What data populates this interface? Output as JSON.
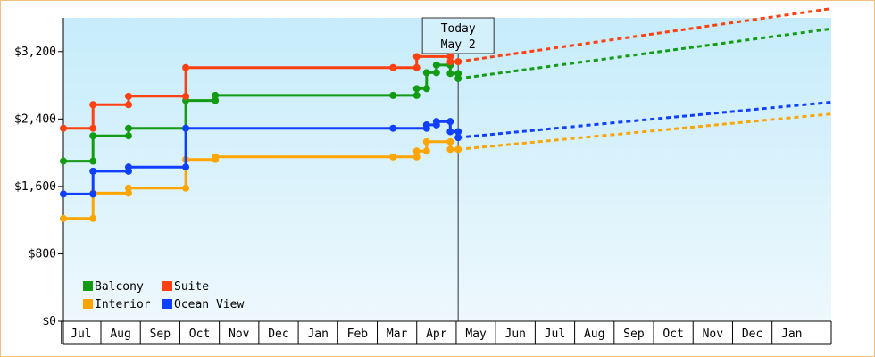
{
  "chart_data": {
    "type": "line",
    "y_axis": {
      "min": 0,
      "max": 3600,
      "ticks": [
        {
          "value": 0,
          "label": "$0"
        },
        {
          "value": 800,
          "label": "$800"
        },
        {
          "value": 1600,
          "label": "$1,600"
        },
        {
          "value": 2400,
          "label": "$2,400"
        },
        {
          "value": 3200,
          "label": "$3,200"
        }
      ]
    },
    "x_axis": {
      "min": -0.45,
      "max": 19,
      "month_labels": [
        "Jul",
        "Aug",
        "Sep",
        "Oct",
        "Nov",
        "Dec",
        "Jan",
        "Feb",
        "Mar",
        "Apr",
        "May",
        "Jun",
        "Jul",
        "Aug",
        "Sep",
        "Oct",
        "Nov",
        "Dec",
        "Jan"
      ]
    },
    "today": {
      "x": 9.55,
      "line1": "Today",
      "line2": "May 2"
    },
    "legend": {
      "placement": "bottom-left"
    },
    "series": [
      {
        "name": "Balcony",
        "color": "#139b13",
        "points": [
          [
            -0.45,
            1900
          ],
          [
            0.3,
            1900
          ],
          [
            0.3,
            2200
          ],
          [
            1.2,
            2200
          ],
          [
            1.2,
            2290
          ],
          [
            2.65,
            2290
          ],
          [
            2.65,
            2620
          ],
          [
            3.4,
            2620
          ],
          [
            3.4,
            2680
          ],
          [
            7.9,
            2680
          ],
          [
            8.5,
            2680
          ],
          [
            8.5,
            2760
          ],
          [
            8.75,
            2760
          ],
          [
            8.75,
            2950
          ],
          [
            9.0,
            2950
          ],
          [
            9.0,
            3040
          ],
          [
            9.35,
            3040
          ],
          [
            9.35,
            2940
          ],
          [
            9.55,
            2940
          ],
          [
            9.55,
            2880
          ]
        ],
        "markers": [
          [
            -0.45,
            1900
          ],
          [
            0.3,
            1900
          ],
          [
            0.3,
            2200
          ],
          [
            1.2,
            2200
          ],
          [
            1.2,
            2290
          ],
          [
            2.65,
            2290
          ],
          [
            2.65,
            2620
          ],
          [
            3.4,
            2620
          ],
          [
            3.4,
            2680
          ],
          [
            7.9,
            2680
          ],
          [
            8.5,
            2680
          ],
          [
            8.5,
            2760
          ],
          [
            8.75,
            2760
          ],
          [
            8.75,
            2950
          ],
          [
            9.0,
            2950
          ],
          [
            9.0,
            3040
          ],
          [
            9.35,
            3040
          ],
          [
            9.35,
            2940
          ],
          [
            9.55,
            2940
          ],
          [
            9.55,
            2880
          ]
        ],
        "forecast": [
          [
            9.55,
            2880
          ],
          [
            19,
            3470
          ]
        ]
      },
      {
        "name": "Suite",
        "color": "#ff4010",
        "points": [
          [
            -0.45,
            2290
          ],
          [
            0.3,
            2290
          ],
          [
            0.3,
            2570
          ],
          [
            1.2,
            2570
          ],
          [
            1.2,
            2670
          ],
          [
            2.65,
            2670
          ],
          [
            2.65,
            3010
          ],
          [
            7.9,
            3010
          ],
          [
            8.5,
            3010
          ],
          [
            8.5,
            3140
          ],
          [
            9.35,
            3140
          ],
          [
            9.35,
            3080
          ],
          [
            9.55,
            3080
          ]
        ],
        "markers": [
          [
            -0.45,
            2290
          ],
          [
            0.3,
            2290
          ],
          [
            0.3,
            2570
          ],
          [
            1.2,
            2570
          ],
          [
            1.2,
            2670
          ],
          [
            2.65,
            2670
          ],
          [
            2.65,
            3010
          ],
          [
            7.9,
            3010
          ],
          [
            8.5,
            3010
          ],
          [
            8.5,
            3140
          ],
          [
            9.35,
            3140
          ],
          [
            9.35,
            3080
          ],
          [
            9.55,
            3080
          ]
        ],
        "forecast": [
          [
            9.55,
            3080
          ],
          [
            19,
            3710
          ]
        ]
      },
      {
        "name": "Interior",
        "color": "#ffa500",
        "points": [
          [
            -0.45,
            1220
          ],
          [
            0.3,
            1220
          ],
          [
            0.3,
            1520
          ],
          [
            1.2,
            1520
          ],
          [
            1.2,
            1580
          ],
          [
            2.65,
            1580
          ],
          [
            2.65,
            1920
          ],
          [
            3.4,
            1920
          ],
          [
            3.4,
            1950
          ],
          [
            7.9,
            1950
          ],
          [
            8.5,
            1950
          ],
          [
            8.5,
            2020
          ],
          [
            8.75,
            2020
          ],
          [
            8.75,
            2130
          ],
          [
            9.35,
            2130
          ],
          [
            9.35,
            2040
          ],
          [
            9.55,
            2040
          ]
        ],
        "markers": [
          [
            -0.45,
            1220
          ],
          [
            0.3,
            1220
          ],
          [
            0.3,
            1520
          ],
          [
            1.2,
            1520
          ],
          [
            1.2,
            1580
          ],
          [
            2.65,
            1580
          ],
          [
            2.65,
            1920
          ],
          [
            3.4,
            1920
          ],
          [
            3.4,
            1950
          ],
          [
            7.9,
            1950
          ],
          [
            8.5,
            1950
          ],
          [
            8.5,
            2020
          ],
          [
            8.75,
            2020
          ],
          [
            8.75,
            2130
          ],
          [
            9.35,
            2130
          ],
          [
            9.35,
            2040
          ],
          [
            9.55,
            2040
          ]
        ],
        "forecast": [
          [
            9.55,
            2040
          ],
          [
            19,
            2460
          ]
        ]
      },
      {
        "name": "Ocean View",
        "color": "#1040ff",
        "points": [
          [
            -0.45,
            1510
          ],
          [
            0.3,
            1510
          ],
          [
            0.3,
            1780
          ],
          [
            1.2,
            1780
          ],
          [
            1.2,
            1830
          ],
          [
            2.65,
            1830
          ],
          [
            2.65,
            2290
          ],
          [
            7.9,
            2290
          ],
          [
            8.75,
            2290
          ],
          [
            8.75,
            2330
          ],
          [
            9.0,
            2330
          ],
          [
            9.0,
            2370
          ],
          [
            9.35,
            2370
          ],
          [
            9.35,
            2250
          ],
          [
            9.55,
            2250
          ],
          [
            9.55,
            2180
          ]
        ],
        "markers": [
          [
            -0.45,
            1510
          ],
          [
            0.3,
            1510
          ],
          [
            0.3,
            1780
          ],
          [
            1.2,
            1780
          ],
          [
            1.2,
            1830
          ],
          [
            2.65,
            1830
          ],
          [
            2.65,
            2290
          ],
          [
            7.9,
            2290
          ],
          [
            8.75,
            2290
          ],
          [
            8.75,
            2330
          ],
          [
            9.0,
            2330
          ],
          [
            9.0,
            2370
          ],
          [
            9.35,
            2370
          ],
          [
            9.35,
            2250
          ],
          [
            9.55,
            2250
          ],
          [
            9.55,
            2180
          ]
        ],
        "forecast": [
          [
            9.55,
            2180
          ],
          [
            19,
            2600
          ]
        ]
      }
    ]
  }
}
